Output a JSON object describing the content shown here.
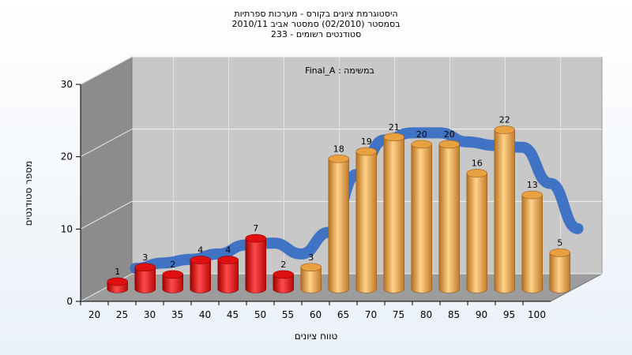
{
  "chart_data": {
    "type": "bar",
    "title": [
      "היסטוגרמת ציונים בקורס - מערכות ספרתיות",
      "בסמסטר (02/2010) סמסטר אביב 2010/11",
      "סטודנטים רשומים - 233"
    ],
    "annotation": "במשימה : Final_A",
    "xlabel": "טווח ציונים",
    "ylabel": "מספר סטודנטים",
    "categories": [
      "20",
      "25",
      "30",
      "35",
      "40",
      "45",
      "50",
      "55",
      "60",
      "65",
      "70",
      "75",
      "80",
      "85",
      "90",
      "95",
      "100"
    ],
    "values": [
      1,
      3,
      2,
      4,
      4,
      7,
      2,
      3,
      18,
      19,
      21,
      20,
      20,
      16,
      22,
      13,
      5
    ],
    "bar_labels": [
      "1",
      "3",
      "2",
      "4",
      "4",
      "7",
      "2",
      "3",
      "18",
      "19",
      "21",
      "20",
      "20",
      "16",
      "22",
      "13",
      "5"
    ],
    "y_ticks": [
      "0",
      "10",
      "20",
      "30"
    ],
    "ylim": [
      0,
      30
    ],
    "fail_color": "#e01010",
    "pass_color": "#e8a040",
    "curve_color": "#3a6fc4",
    "fail_threshold": "55"
  }
}
